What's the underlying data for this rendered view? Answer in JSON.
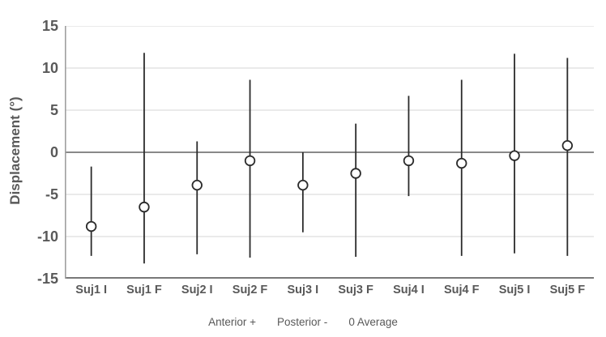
{
  "figure": {
    "background": "#ffffff"
  },
  "chart_data": {
    "type": "scatter",
    "subtype": "mean-markers-with-min-max-error-bars",
    "title": "",
    "xlabel": "",
    "ylabel": "Displacement (°)",
    "ylim": [
      -15,
      15
    ],
    "yticks": [
      15,
      10,
      5,
      0,
      -5,
      -10,
      -15
    ],
    "grid": true,
    "legend_position": "bottom",
    "legend": [
      "Anterior +",
      "Posterior -",
      "0 Average"
    ],
    "categories": [
      "Suj1 I",
      "Suj1 F",
      "Suj2 I",
      "Suj2 F",
      "Suj3 I",
      "Suj3 F",
      "Suj4 I",
      "Suj4 F",
      "Suj5 I",
      "Suj5 F"
    ],
    "series": [
      {
        "name": "Average",
        "marker": "open-circle",
        "values": [
          -8.8,
          -6.5,
          -3.9,
          -1.0,
          -3.9,
          -2.5,
          -1.0,
          -1.3,
          -0.4,
          0.8
        ]
      }
    ],
    "error_bars": {
      "high": [
        -1.7,
        11.8,
        1.3,
        8.6,
        0.0,
        3.4,
        6.7,
        8.6,
        11.7,
        11.2
      ],
      "low": [
        -12.3,
        -13.2,
        -12.1,
        -12.5,
        -9.5,
        -12.4,
        -5.2,
        -12.3,
        -12.0,
        -12.3
      ]
    },
    "colors": {
      "marker_stroke": "#2b2b2b",
      "marker_fill": "#ffffff",
      "error_bar": "#2b2b2b",
      "gridline": "#d4d4d4",
      "zero_line": "#787878",
      "bottom_axis": "#787878",
      "left_axis": "#a0a0a0",
      "label_text": "#595959"
    }
  }
}
